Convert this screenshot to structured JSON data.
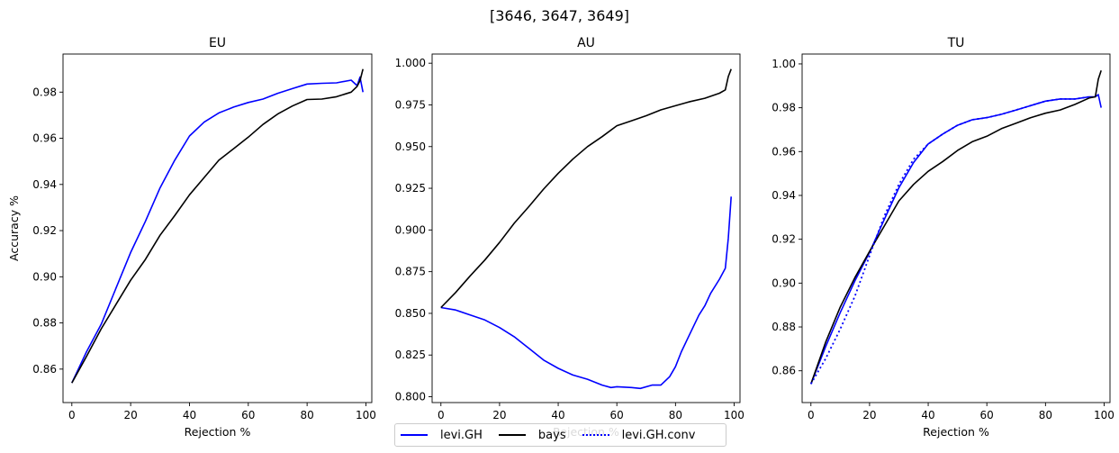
{
  "suptitle": "[3646, 3647, 3649]",
  "colors": {
    "levi_gh": "#0000ff",
    "bays": "#000000",
    "levi_gh_conv": "#0000ff"
  },
  "legend": [
    {
      "label": "levi.GH",
      "color": "#0000ff",
      "style": "solid"
    },
    {
      "label": "bays",
      "color": "#000000",
      "style": "solid"
    },
    {
      "label": "levi.GH.conv",
      "color": "#0000ff",
      "style": "dotted"
    }
  ],
  "chart_data": [
    {
      "type": "line",
      "title": "EU",
      "xlabel": "Rejection %",
      "ylabel": "Accuracy %",
      "xlim": [
        -3,
        102
      ],
      "ylim": [
        0.8455,
        0.9965
      ],
      "xticks": [
        0,
        20,
        40,
        60,
        80,
        100
      ],
      "yticks": [
        0.86,
        0.88,
        0.9,
        0.92,
        0.94,
        0.96,
        0.98
      ],
      "ytick_labels": [
        "0.86",
        "0.88",
        "0.90",
        "0.92",
        "0.94",
        "0.96",
        "0.98"
      ],
      "series": [
        {
          "name": "levi.GH",
          "color": "#0000ff",
          "style": "solid",
          "x": [
            0,
            5,
            10,
            15,
            20,
            25,
            30,
            35,
            40,
            45,
            50,
            55,
            60,
            65,
            70,
            75,
            80,
            85,
            90,
            95,
            97,
            98,
            99
          ],
          "y": [
            0.854,
            0.8675,
            0.8795,
            0.895,
            0.9105,
            0.924,
            0.9385,
            0.9505,
            0.961,
            0.967,
            0.971,
            0.9735,
            0.9755,
            0.977,
            0.9795,
            0.9815,
            0.9835,
            0.9838,
            0.984,
            0.9852,
            0.9828,
            0.9865,
            0.98
          ]
        },
        {
          "name": "bays",
          "color": "#000000",
          "style": "solid",
          "x": [
            0,
            5,
            10,
            15,
            20,
            25,
            30,
            35,
            40,
            45,
            50,
            55,
            60,
            65,
            70,
            75,
            80,
            85,
            90,
            95,
            97,
            98,
            99
          ],
          "y": [
            0.854,
            0.8655,
            0.8775,
            0.888,
            0.8985,
            0.9075,
            0.918,
            0.9265,
            0.9355,
            0.943,
            0.9505,
            0.9555,
            0.9605,
            0.966,
            0.9705,
            0.974,
            0.9768,
            0.977,
            0.978,
            0.98,
            0.9825,
            0.985,
            0.99
          ]
        }
      ]
    },
    {
      "type": "line",
      "title": "AU",
      "xlabel": "Rejection %",
      "ylabel": "",
      "xlim": [
        -3,
        102
      ],
      "ylim": [
        0.7965,
        1.0055
      ],
      "xticks": [
        0,
        20,
        40,
        60,
        80,
        100
      ],
      "yticks": [
        0.8,
        0.825,
        0.85,
        0.875,
        0.9,
        0.925,
        0.95,
        0.975,
        1.0
      ],
      "ytick_labels": [
        "0.800",
        "0.825",
        "0.850",
        "0.875",
        "0.900",
        "0.925",
        "0.950",
        "0.975",
        "1.000"
      ],
      "series": [
        {
          "name": "levi.GH",
          "color": "#0000ff",
          "style": "solid",
          "x": [
            0,
            5,
            10,
            15,
            20,
            25,
            30,
            35,
            40,
            45,
            50,
            55,
            58,
            60,
            65,
            68,
            72,
            75,
            78,
            80,
            82,
            85,
            88,
            90,
            92,
            95,
            97,
            98,
            99
          ],
          "y": [
            0.8535,
            0.852,
            0.849,
            0.846,
            0.8415,
            0.836,
            0.829,
            0.822,
            0.817,
            0.813,
            0.8105,
            0.807,
            0.8055,
            0.806,
            0.8055,
            0.805,
            0.807,
            0.807,
            0.812,
            0.818,
            0.827,
            0.838,
            0.849,
            0.8545,
            0.862,
            0.8705,
            0.877,
            0.895,
            0.92
          ]
        },
        {
          "name": "bays",
          "color": "#000000",
          "style": "solid",
          "x": [
            0,
            5,
            10,
            15,
            20,
            25,
            30,
            35,
            40,
            45,
            50,
            55,
            60,
            65,
            70,
            75,
            80,
            85,
            90,
            95,
            97,
            98,
            99
          ],
          "y": [
            0.8535,
            0.8625,
            0.8725,
            0.882,
            0.8925,
            0.904,
            0.914,
            0.9245,
            0.934,
            0.9425,
            0.95,
            0.956,
            0.9625,
            0.9655,
            0.9685,
            0.972,
            0.9745,
            0.977,
            0.979,
            0.982,
            0.984,
            0.992,
            0.9965
          ]
        }
      ]
    },
    {
      "type": "line",
      "title": "TU",
      "xlabel": "Rejection %",
      "ylabel": "",
      "xlim": [
        -3,
        102
      ],
      "ylim": [
        0.8455,
        1.0045
      ],
      "xticks": [
        0,
        20,
        40,
        60,
        80,
        100
      ],
      "yticks": [
        0.86,
        0.88,
        0.9,
        0.92,
        0.94,
        0.96,
        0.98,
        1.0
      ],
      "ytick_labels": [
        "0.86",
        "0.88",
        "0.90",
        "0.92",
        "0.94",
        "0.96",
        "0.98",
        "1.00"
      ],
      "series": [
        {
          "name": "levi.GH",
          "color": "#0000ff",
          "style": "solid",
          "x": [
            0,
            5,
            10,
            15,
            20,
            25,
            30,
            35,
            40,
            45,
            50,
            55,
            60,
            65,
            70,
            75,
            80,
            85,
            90,
            95,
            97,
            98,
            99
          ],
          "y": [
            0.854,
            0.871,
            0.8865,
            0.901,
            0.914,
            0.929,
            0.9435,
            0.955,
            0.9635,
            0.968,
            0.972,
            0.9745,
            0.9755,
            0.977,
            0.979,
            0.981,
            0.983,
            0.984,
            0.984,
            0.985,
            0.985,
            0.986,
            0.98
          ]
        },
        {
          "name": "bays",
          "color": "#000000",
          "style": "solid",
          "x": [
            0,
            5,
            10,
            15,
            20,
            25,
            30,
            35,
            40,
            45,
            50,
            55,
            60,
            65,
            70,
            75,
            80,
            85,
            90,
            95,
            97,
            98,
            99
          ],
          "y": [
            0.854,
            0.873,
            0.889,
            0.9025,
            0.9145,
            0.926,
            0.9375,
            0.945,
            0.951,
            0.9555,
            0.9605,
            0.9645,
            0.967,
            0.9705,
            0.973,
            0.9755,
            0.9775,
            0.979,
            0.9815,
            0.9845,
            0.985,
            0.993,
            0.997
          ]
        },
        {
          "name": "levi.GH.conv",
          "color": "#0000ff",
          "style": "dotted",
          "x": [
            0,
            5,
            10,
            15,
            20,
            25,
            30,
            35,
            40,
            45,
            50,
            55,
            60,
            65,
            70,
            75,
            80,
            85,
            90,
            95
          ],
          "y": [
            0.854,
            0.8655,
            0.879,
            0.894,
            0.9125,
            0.9305,
            0.945,
            0.9565,
            0.9635,
            0.968,
            0.972,
            0.9745,
            0.9755,
            0.977,
            0.979,
            0.981,
            0.983,
            0.984,
            0.984,
            0.985
          ]
        }
      ]
    }
  ]
}
